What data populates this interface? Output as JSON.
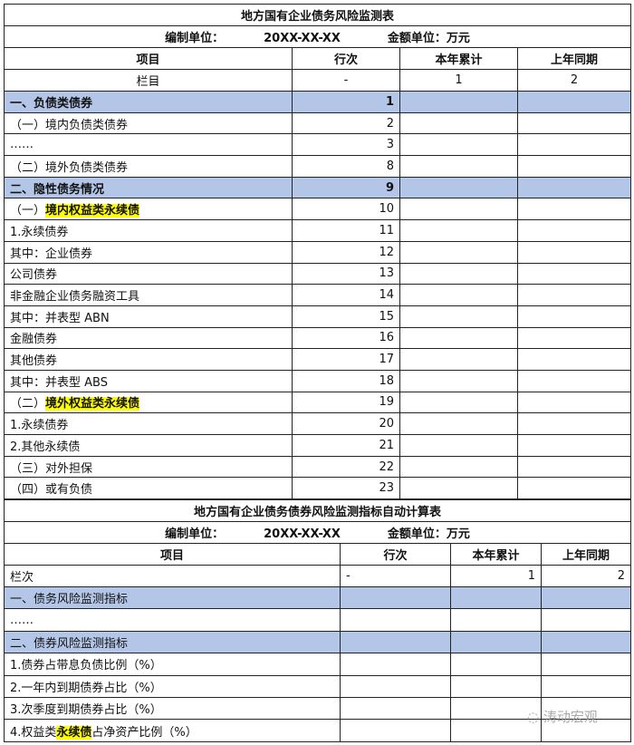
{
  "table1": {
    "title": "地方国有企业债务风险监测表",
    "unit_label": "编制单位：",
    "date": "20XX-XX-XX",
    "amount_unit": "金额单位：万元",
    "headers": [
      "项目",
      "行次",
      "本年累计",
      "上年同期"
    ],
    "col_row": [
      "栏目",
      "-",
      "1",
      "2"
    ],
    "rows": [
      {
        "pre": "一、负债类债券",
        "hl": "",
        "post": "",
        "line": "1",
        "section": true
      },
      {
        "pre": "（一）境内负债类债券",
        "hl": "",
        "post": "",
        "line": "2"
      },
      {
        "pre": "……",
        "hl": "",
        "post": "",
        "line": "3"
      },
      {
        "pre": "（二）境外负债类债券",
        "hl": "",
        "post": "",
        "line": "8"
      },
      {
        "pre": "二、隐性债务情况",
        "hl": "",
        "post": "",
        "line": "9",
        "section": true
      },
      {
        "pre": "（一）",
        "hl": "境内权益类永续债",
        "post": "",
        "line": "10"
      },
      {
        "pre": "1.永续债券",
        "hl": "",
        "post": "",
        "line": "11"
      },
      {
        "pre": "其中：企业债券",
        "hl": "",
        "post": "",
        "line": "12"
      },
      {
        "pre": "公司债券",
        "hl": "",
        "post": "",
        "line": "13"
      },
      {
        "pre": "非金融企业债务融资工具",
        "hl": "",
        "post": "",
        "line": "14"
      },
      {
        "pre": "其中：并表型 ABN",
        "hl": "",
        "post": "",
        "line": "15"
      },
      {
        "pre": "金融债券",
        "hl": "",
        "post": "",
        "line": "16"
      },
      {
        "pre": "其他债券",
        "hl": "",
        "post": "",
        "line": "17"
      },
      {
        "pre": "其中：并表型 ABS",
        "hl": "",
        "post": "",
        "line": "18"
      },
      {
        "pre": "（二）",
        "hl": "境外权益类永续债",
        "post": "",
        "line": "19"
      },
      {
        "pre": "1.永续债券",
        "hl": "",
        "post": "",
        "line": "20"
      },
      {
        "pre": "2.其他永续债",
        "hl": "",
        "post": "",
        "line": "21"
      },
      {
        "pre": "（三）对外担保",
        "hl": "",
        "post": "",
        "line": "22"
      },
      {
        "pre": "（四）或有负债",
        "hl": "",
        "post": "",
        "line": "23"
      }
    ]
  },
  "table2": {
    "title": "地方国有企业债务债券风险监测指标自动计算表",
    "unit_label": "编制单位：",
    "date": "20XX-XX-XX",
    "amount_unit": "金额单位：万元",
    "headers": [
      "项目",
      "行次",
      "本年累计",
      "上年同期"
    ],
    "col_row": [
      "栏次",
      "-",
      "1",
      "2"
    ],
    "rows": [
      {
        "pre": "一、债务风险监测指标",
        "hl": "",
        "post": "",
        "section": true
      },
      {
        "pre": "……",
        "hl": "",
        "post": ""
      },
      {
        "pre": "二、债券风险监测指标",
        "hl": "",
        "post": "",
        "section": true
      },
      {
        "pre": "1.债券占带息负债比例（%）",
        "hl": "",
        "post": ""
      },
      {
        "pre": "2.一年内到期债券占比（%）",
        "hl": "",
        "post": ""
      },
      {
        "pre": "3.次季度到期债券占比（%）",
        "hl": "",
        "post": ""
      },
      {
        "pre": "4.权益类",
        "hl": "永续债",
        "post": "占净资产比例（%）"
      }
    ]
  },
  "watermark": "涛动宏观",
  "colors": {
    "section_fill": "#b4c6e7",
    "highlight": "#ffff00"
  }
}
